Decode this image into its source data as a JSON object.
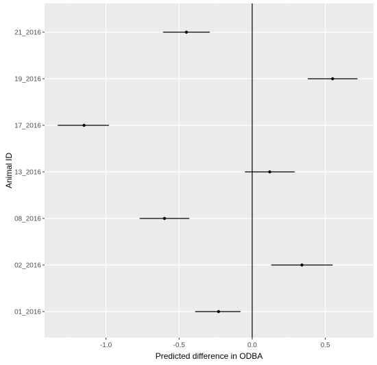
{
  "chart_data": {
    "type": "forest",
    "xlabel": "Predicted difference in ODBA",
    "ylabel": "Animal ID",
    "xlim": [
      -1.42,
      0.83
    ],
    "x_ticks": [
      -1.0,
      -0.5,
      0.0,
      0.5
    ],
    "x_tick_labels": [
      "-1.0",
      "-0.5",
      "0.0",
      "0.5"
    ],
    "reference_line_x": 0,
    "grid": true,
    "categories": [
      "01_2016",
      "02_2016",
      "08_2016",
      "13_2016",
      "17_2016",
      "19_2016",
      "21_2016"
    ],
    "estimates": [
      -0.23,
      0.34,
      -0.6,
      0.12,
      -1.15,
      0.55,
      -0.45
    ],
    "lower": [
      -0.39,
      0.13,
      -0.77,
      -0.05,
      -1.33,
      0.38,
      -0.61
    ],
    "upper": [
      -0.08,
      0.55,
      -0.43,
      0.29,
      -0.98,
      0.72,
      -0.29
    ]
  },
  "colors": {
    "panel_background": "#ebebeb",
    "grid_major": "#ffffff",
    "grid_minor": "#f5f5f5",
    "mark": "#000000"
  }
}
